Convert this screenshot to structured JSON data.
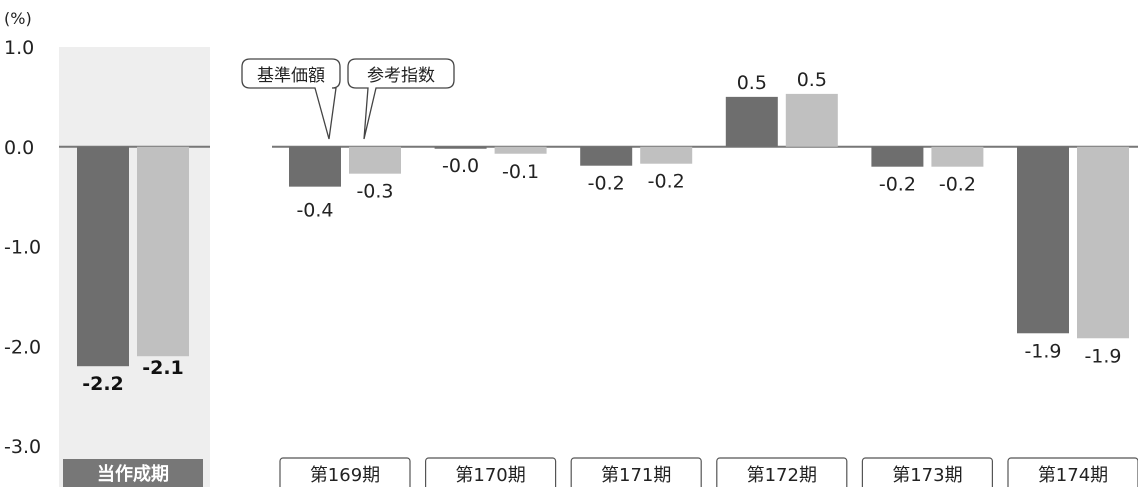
{
  "chart_data": {
    "type": "bar",
    "unit_label": "(%)",
    "ylim": [
      -3.0,
      1.0
    ],
    "yticks": [
      "1.0",
      "0.0",
      "-1.0",
      "-2.0",
      "-3.0"
    ],
    "legend": [
      "基準価額",
      "参考指数"
    ],
    "current_period": {
      "label": "当作成期",
      "values": [
        -2.2,
        -2.1
      ],
      "value_labels": [
        "-2.2",
        "-2.1"
      ]
    },
    "categories": [
      "第169期",
      "第170期",
      "第171期",
      "第172期",
      "第173期",
      "第174期"
    ],
    "series": [
      {
        "name": "基準価額",
        "values": [
          -0.4,
          -0.02,
          -0.19,
          0.5,
          -0.2,
          -1.87
        ],
        "value_labels": [
          "-0.4",
          "-0.0",
          "-0.2",
          "0.5",
          "-0.2",
          "-1.9"
        ]
      },
      {
        "name": "参考指数",
        "values": [
          -0.27,
          -0.07,
          -0.17,
          0.53,
          -0.2,
          -1.92
        ],
        "value_labels": [
          "-0.3",
          "-0.1",
          "-0.2",
          "0.5",
          "-0.2",
          "-1.9"
        ]
      }
    ],
    "colors": {
      "fund": "#6e6e6e",
      "index": "#c0c0c0",
      "current_panel": "#eeeeee",
      "current_label_bg": "#777777",
      "axis": "#777777"
    }
  }
}
